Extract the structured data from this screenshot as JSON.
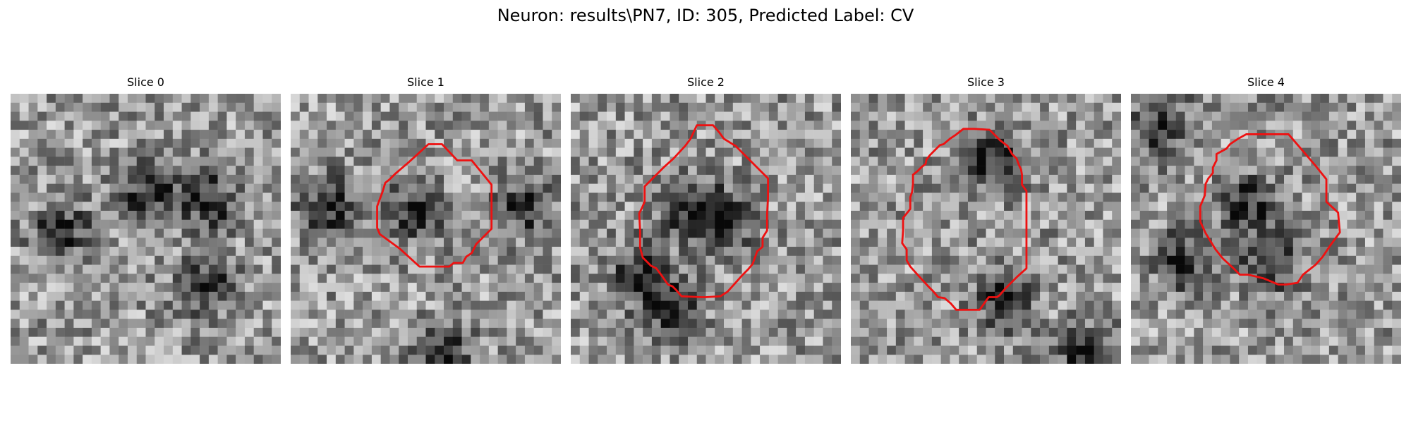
{
  "figure": {
    "title": "Neuron: results\\PN7, ID: 305, Predicted Label: CV"
  },
  "colors": {
    "background": "#ffffff",
    "contour": "#ee1111",
    "colormap": "gray"
  },
  "slices": [
    {
      "label": "Slice 0",
      "has_contour": false,
      "dark_blobs": [
        [
          0.5,
          0.35
        ],
        [
          0.17,
          0.5
        ],
        [
          0.72,
          0.38
        ],
        [
          0.7,
          0.7
        ]
      ]
    },
    {
      "label": "Slice 1",
      "has_contour": true,
      "dark_blobs": [
        [
          0.45,
          0.42
        ],
        [
          0.85,
          0.4
        ],
        [
          0.55,
          0.95
        ],
        [
          0.12,
          0.4
        ]
      ]
    },
    {
      "label": "Slice 2",
      "has_contour": true,
      "dark_blobs": [
        [
          0.42,
          0.4
        ],
        [
          0.55,
          0.45
        ],
        [
          0.25,
          0.65
        ],
        [
          0.35,
          0.78
        ]
      ]
    },
    {
      "label": "Slice 3",
      "has_contour": true,
      "dark_blobs": [
        [
          0.5,
          0.22
        ],
        [
          0.55,
          0.75
        ],
        [
          0.85,
          0.95
        ]
      ]
    },
    {
      "label": "Slice 4",
      "has_contour": true,
      "dark_blobs": [
        [
          0.42,
          0.4
        ],
        [
          0.18,
          0.6
        ],
        [
          0.5,
          0.62
        ],
        [
          0.1,
          0.1
        ]
      ]
    }
  ]
}
